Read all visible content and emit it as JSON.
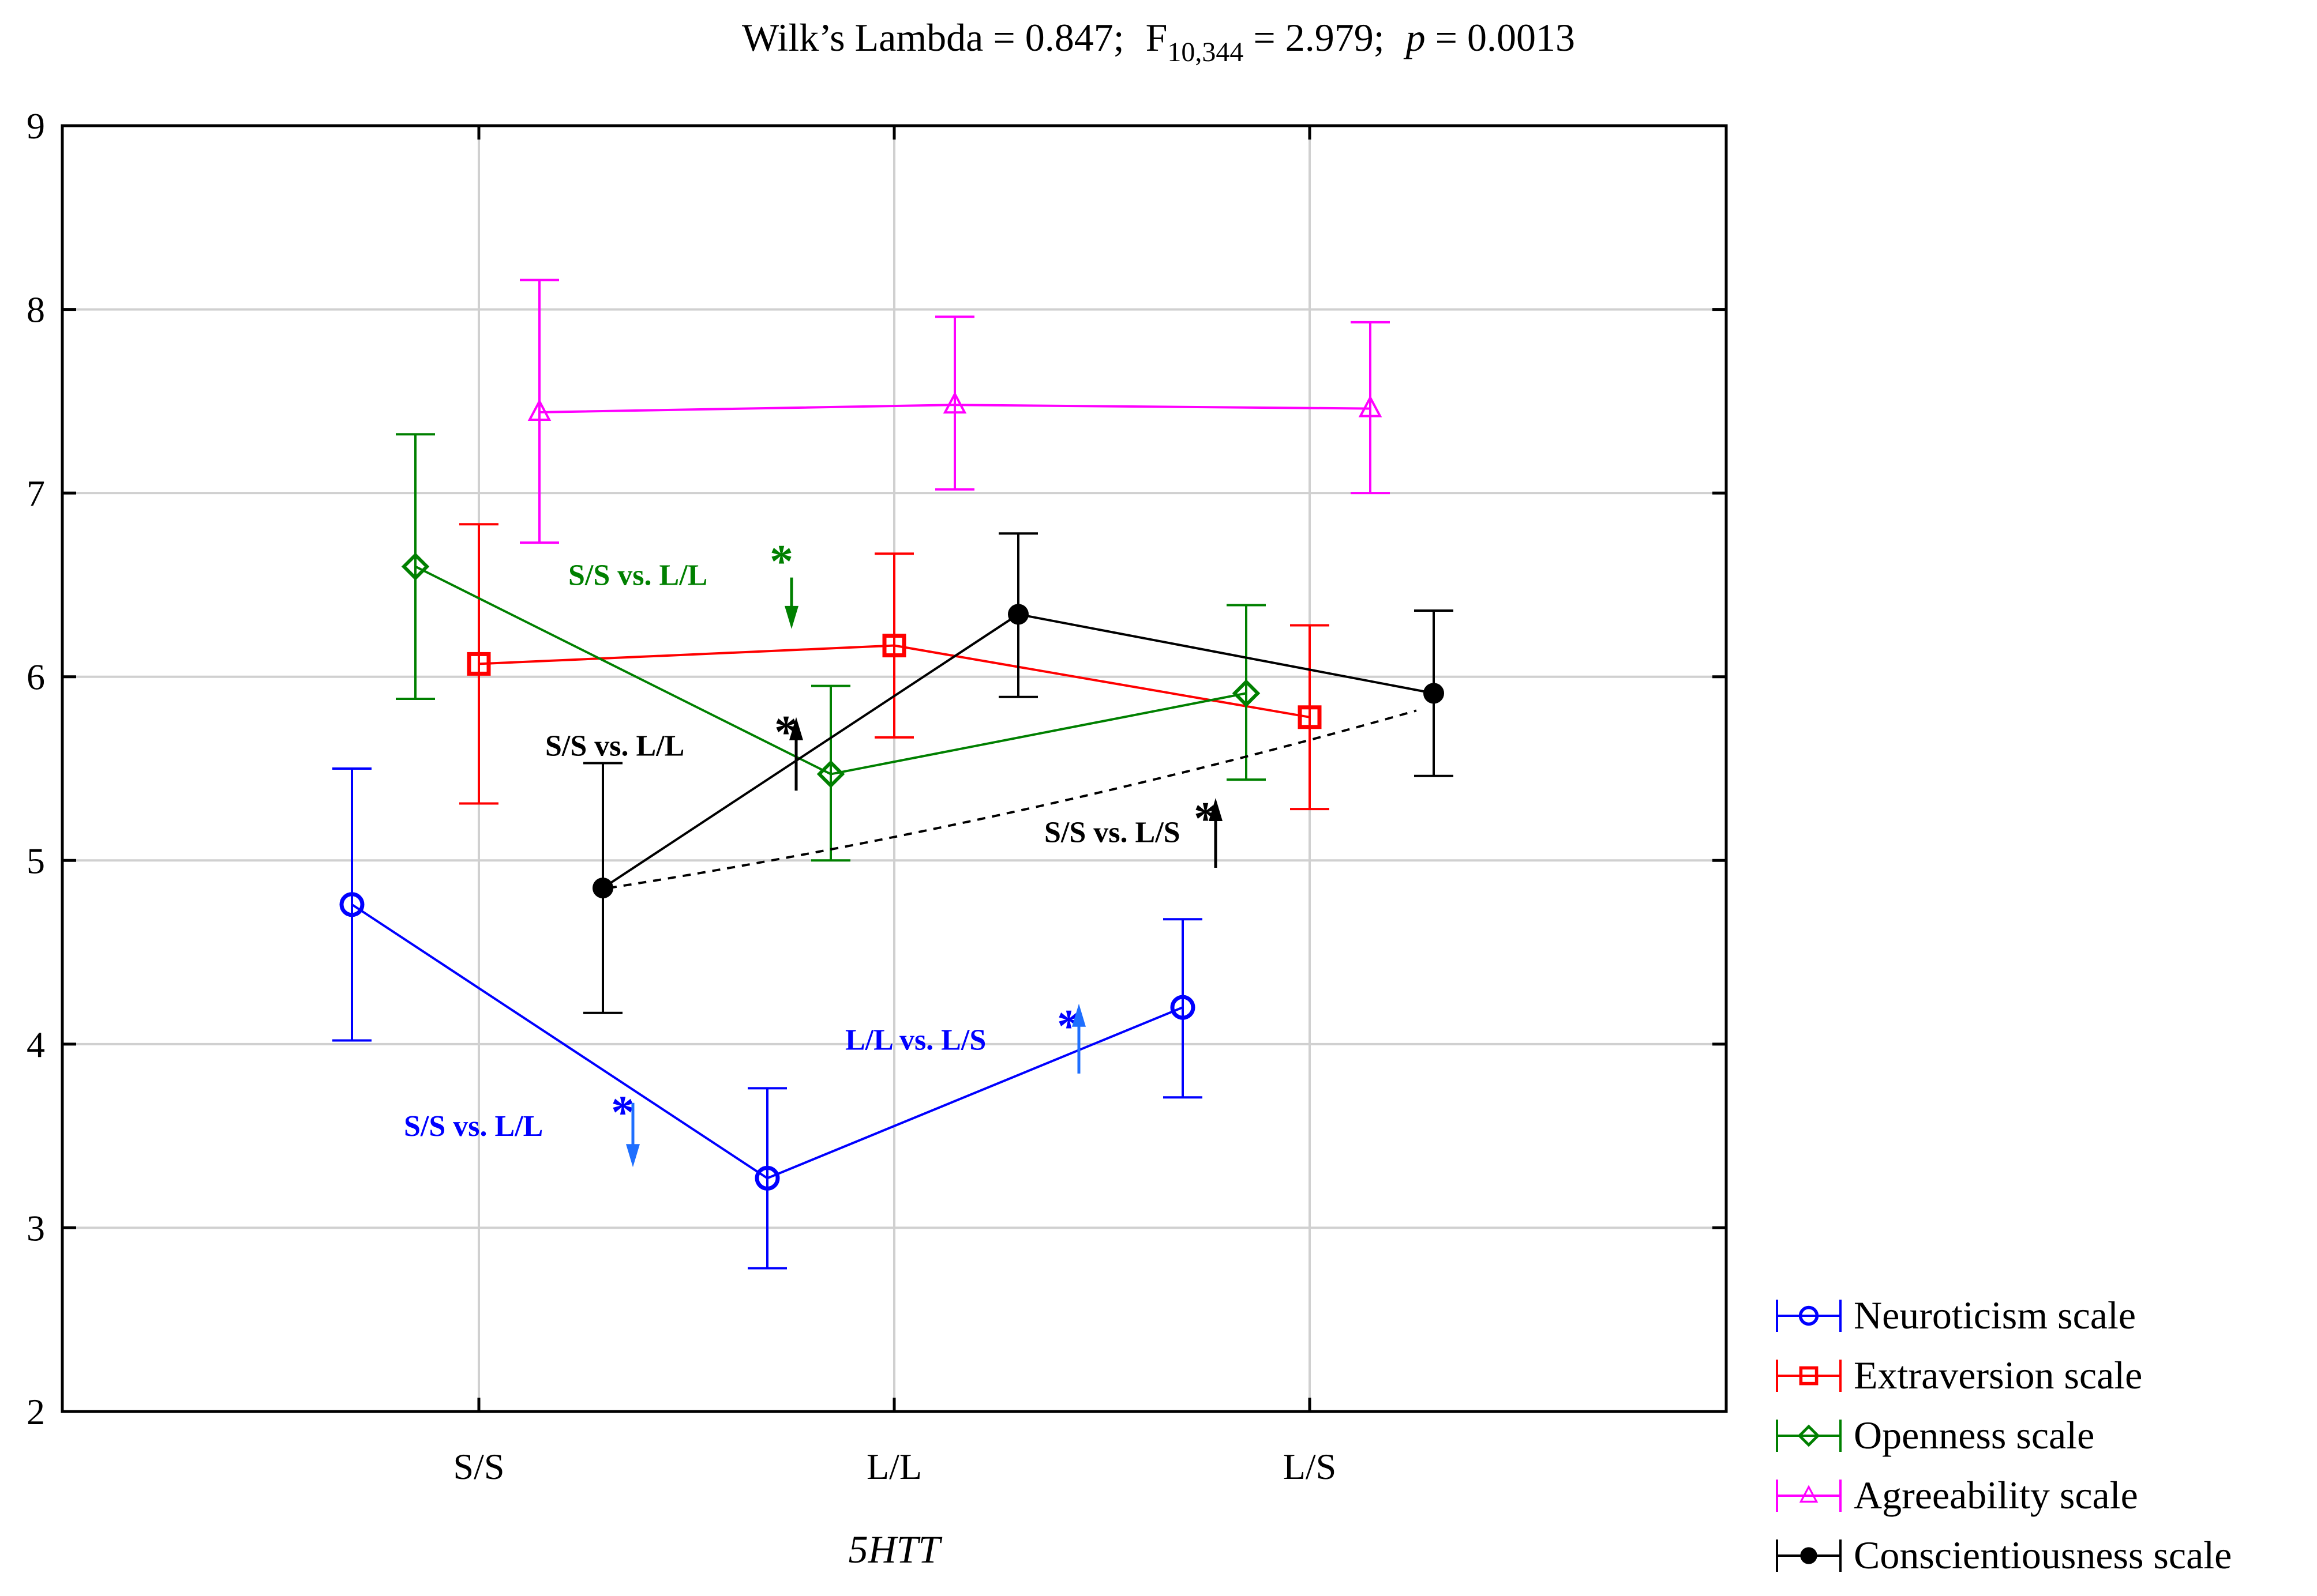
{
  "chart_data": {
    "type": "line",
    "title_parts": {
      "lambda": "Wilk’s Lambda  = 0.847;",
      "f": "F",
      "df": "10,344",
      "f_value": " = 2.979;",
      "p": "p",
      "p_value": " = 0.0013"
    },
    "xlabel": "5HTT",
    "ylabel": "",
    "categories": [
      "S/S",
      "L/L",
      "L/S"
    ],
    "ylim": [
      2,
      9
    ],
    "yticks": [
      "2",
      "3",
      "4",
      "5",
      "6",
      "7",
      "8",
      "9"
    ],
    "grid": true,
    "legend_position": "bottom-right outside",
    "series": [
      {
        "name": "Neuroticism scale",
        "color": "#0000ff",
        "marker": "circle",
        "values": [
          4.76,
          3.27,
          4.2
        ],
        "lower": [
          4.02,
          2.78,
          3.71
        ],
        "upper": [
          5.5,
          3.76,
          4.68
        ]
      },
      {
        "name": "Extraversion scale",
        "color": "#ff0000",
        "marker": "square",
        "values": [
          6.07,
          6.17,
          5.78
        ],
        "lower": [
          5.31,
          5.67,
          5.28
        ],
        "upper": [
          6.83,
          6.67,
          6.28
        ]
      },
      {
        "name": "Openness scale",
        "color": "#008000",
        "marker": "diamond",
        "values": [
          6.6,
          5.47,
          5.91
        ],
        "lower": [
          5.88,
          5.0,
          5.44
        ],
        "upper": [
          7.32,
          5.95,
          6.39
        ]
      },
      {
        "name": "Agreeability scale",
        "color": "#ff00ff",
        "marker": "triangle",
        "values": [
          7.44,
          7.48,
          7.46
        ],
        "lower": [
          6.73,
          7.02,
          7.0
        ],
        "upper": [
          8.16,
          7.96,
          7.93
        ]
      },
      {
        "name": "Conscientiousness scale",
        "color": "#000000",
        "marker": "filled-circle",
        "values": [
          4.85,
          6.34,
          5.91
        ],
        "lower": [
          4.17,
          5.89,
          5.46
        ],
        "upper": [
          5.53,
          6.78,
          6.36
        ]
      }
    ],
    "annotations": [
      {
        "text": "S/S vs. L/L",
        "color": "#008000",
        "arrow": "down"
      },
      {
        "text": "S/S vs. L/L",
        "color": "#000000",
        "arrow": "up"
      },
      {
        "text": "S/S vs. L/S",
        "color": "#000000",
        "arrow": "up"
      },
      {
        "text": "L/L vs. L/S",
        "color": "#0000ff",
        "arrow": "up"
      },
      {
        "text": "S/S vs. L/L",
        "color": "#0000ff",
        "arrow": "down"
      }
    ],
    "annotation_mark": "*"
  }
}
